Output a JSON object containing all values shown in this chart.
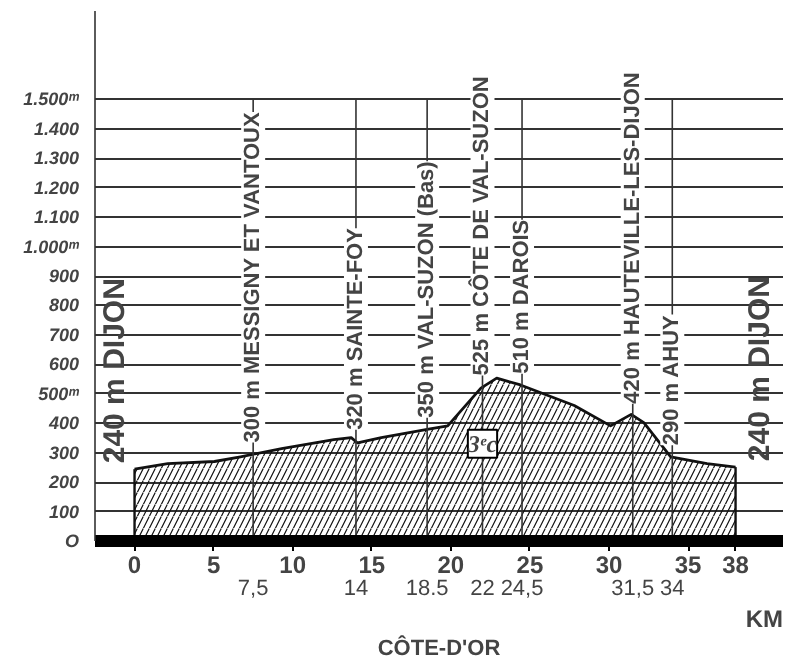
{
  "chart_data": {
    "type": "area",
    "x": [
      0,
      2.1,
      5.05,
      6.7,
      9.3,
      12.6,
      13.7,
      14.1,
      15.6,
      18.5,
      19.8,
      21.9,
      22.9,
      24.4,
      27.8,
      30.1,
      31.4,
      32.2,
      33.9,
      36.2,
      38
    ],
    "series": [
      {
        "color": "#111111",
        "values": [
          244,
          263,
          270,
          286,
          314,
          344,
          351,
          333,
          351,
          379,
          391,
          519,
          553,
          530,
          460,
          391,
          430,
          402,
          286,
          263,
          251
        ]
      }
    ],
    "xlabel": "KM",
    "xlim": [
      -2.5,
      41
    ],
    "xticks": [
      0,
      5,
      10,
      15,
      20,
      25,
      30,
      35,
      38
    ],
    "x2lim": [
      -2.5,
      41
    ],
    "x2ticks": [
      {
        "value": 7.5,
        "label": "7,5"
      },
      14,
      18.5,
      22,
      {
        "value": 24.5,
        "label": "24,5"
      },
      {
        "value": 31.5,
        "label": "31,5"
      },
      34
    ],
    "ylim": [
      0,
      1800
    ],
    "yticks": [
      {
        "value": 0,
        "label": "O"
      },
      100,
      200,
      300,
      400,
      {
        "value": 500,
        "label": "500ᵐ"
      },
      600,
      700,
      800,
      900,
      {
        "value": 1000,
        "label": "1.000ᵐ"
      },
      {
        "value": 1100,
        "label": "1.100"
      },
      {
        "value": 1200,
        "label": "1.200"
      },
      {
        "value": 1300,
        "label": "1.300"
      },
      {
        "value": 1400,
        "label": "1.400"
      },
      {
        "value": 1500,
        "label": "1.500ᵐ"
      }
    ],
    "grid": "y",
    "ref_lines": [
      {
        "axis": "x",
        "value": 7.5,
        "label": "300 m MESSIGNY ET VANTOUX"
      },
      {
        "axis": "x",
        "value": 14,
        "label": "320 m SAINTE-FOY"
      },
      {
        "axis": "x",
        "value": 18.5,
        "label": "350 m VAL-SUZON (Bas)"
      },
      {
        "axis": "x",
        "value": 22,
        "label": "525 m CÔTE DE VAL-SUZON"
      },
      {
        "axis": "x",
        "value": 24.5,
        "label": "510 m DAROIS"
      },
      {
        "axis": "x",
        "value": 31.5,
        "label": "420 m HAUTEVILLE-LES-DIJON"
      },
      {
        "axis": "x",
        "value": 34,
        "label": "290 m AHUY"
      }
    ],
    "annotations": [
      {
        "text": "240 m DIJON",
        "x": 0,
        "y": 244
      },
      {
        "text": "240 m DIJON",
        "x": 38,
        "y": 251
      },
      {
        "text": "3ᵉc",
        "x": 22,
        "y": 330
      },
      "CÔTE-D'OR"
    ]
  }
}
